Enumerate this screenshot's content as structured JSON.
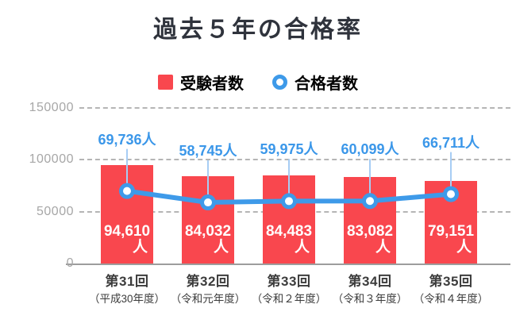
{
  "title": "過去５年の合格率",
  "legend": {
    "examinees": "受験者数",
    "passers": "合格者数"
  },
  "chart_data": {
    "type": "bar",
    "title": "過去５年の合格率",
    "categories": [
      "第31回",
      "第32回",
      "第33回",
      "第34回",
      "第35回"
    ],
    "category_sublabels": [
      "（平成30年度）",
      "（令和元年度）",
      "（令和２年度）",
      "（令和３年度）",
      "（令和４年度）"
    ],
    "series": [
      {
        "name": "受験者数",
        "type": "bar",
        "values": [
          94610,
          84032,
          84483,
          83082,
          79151
        ],
        "labels": [
          "94,610",
          "84,032",
          "84,483",
          "83,082",
          "79,151"
        ],
        "label_suffix": "人",
        "color": "#f9474e",
        "label_color": "#ffffff"
      },
      {
        "name": "合格者数",
        "type": "line",
        "values": [
          69736,
          58745,
          59975,
          60099,
          66711
        ],
        "labels": [
          "69,736人",
          "58,745人",
          "59,975人",
          "60,099人",
          "66,711人"
        ],
        "color": "#3e9ae9",
        "marker": "open-circle-white-fill"
      }
    ],
    "xlabel": "",
    "ylabel": "",
    "ylim": [
      0,
      150000
    ],
    "yticks": [
      0,
      50000,
      100000,
      150000
    ],
    "ytick_labels": [
      "0",
      "50000",
      "100000",
      "150000"
    ],
    "grid": "horizontal-dashed",
    "legend_position": "top-center",
    "colors": {
      "bar": "#f9474e",
      "line": "#3e9ae9",
      "point_label_text": "#3b97e9",
      "leader_line": "#a7cdf4",
      "grid": "#b5b5b5",
      "axis": "#9d9d9d",
      "tick_text": "#a7a7a7",
      "xlabel_text": "#3c3c3c",
      "title_text": "#2f333c",
      "bar_label_text": "#ffffff"
    }
  }
}
